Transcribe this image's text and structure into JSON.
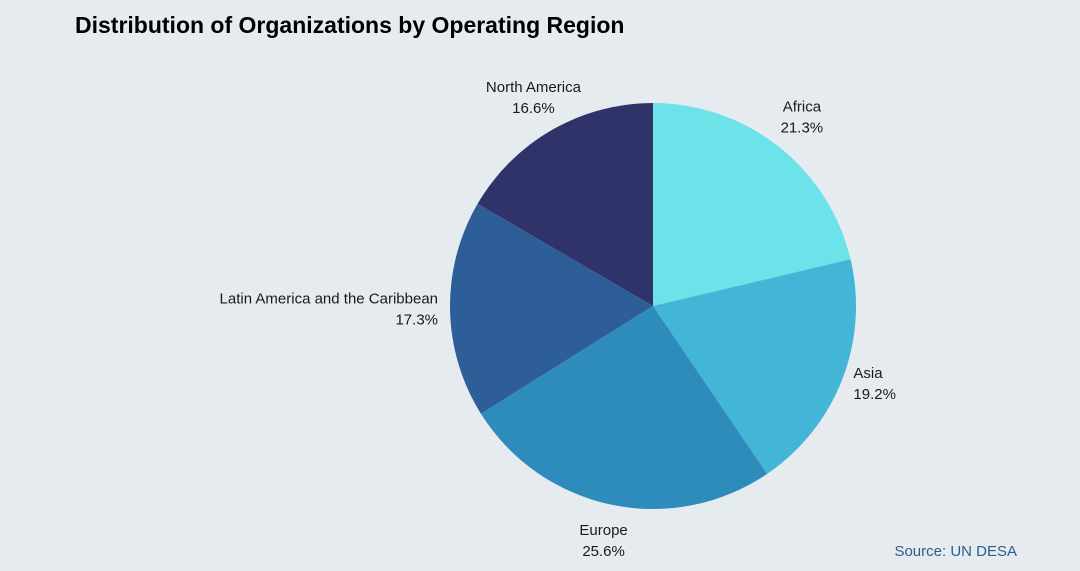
{
  "chart_data": {
    "type": "pie",
    "title": "Distribution of Organizations by Operating Region",
    "categories": [
      "Africa",
      "Asia",
      "Europe",
      "Latin America and the Caribbean",
      "North America"
    ],
    "values": [
      21.3,
      19.2,
      25.6,
      17.3,
      16.6
    ],
    "value_labels": [
      "21.3%",
      "19.2%",
      "25.6%",
      "17.3%",
      "16.6%"
    ],
    "colors": [
      "#6ce3e8",
      "#43b5d6",
      "#2e8cbc",
      "#2e5e98",
      "#30326a"
    ],
    "source": "Source: UN DESA"
  }
}
